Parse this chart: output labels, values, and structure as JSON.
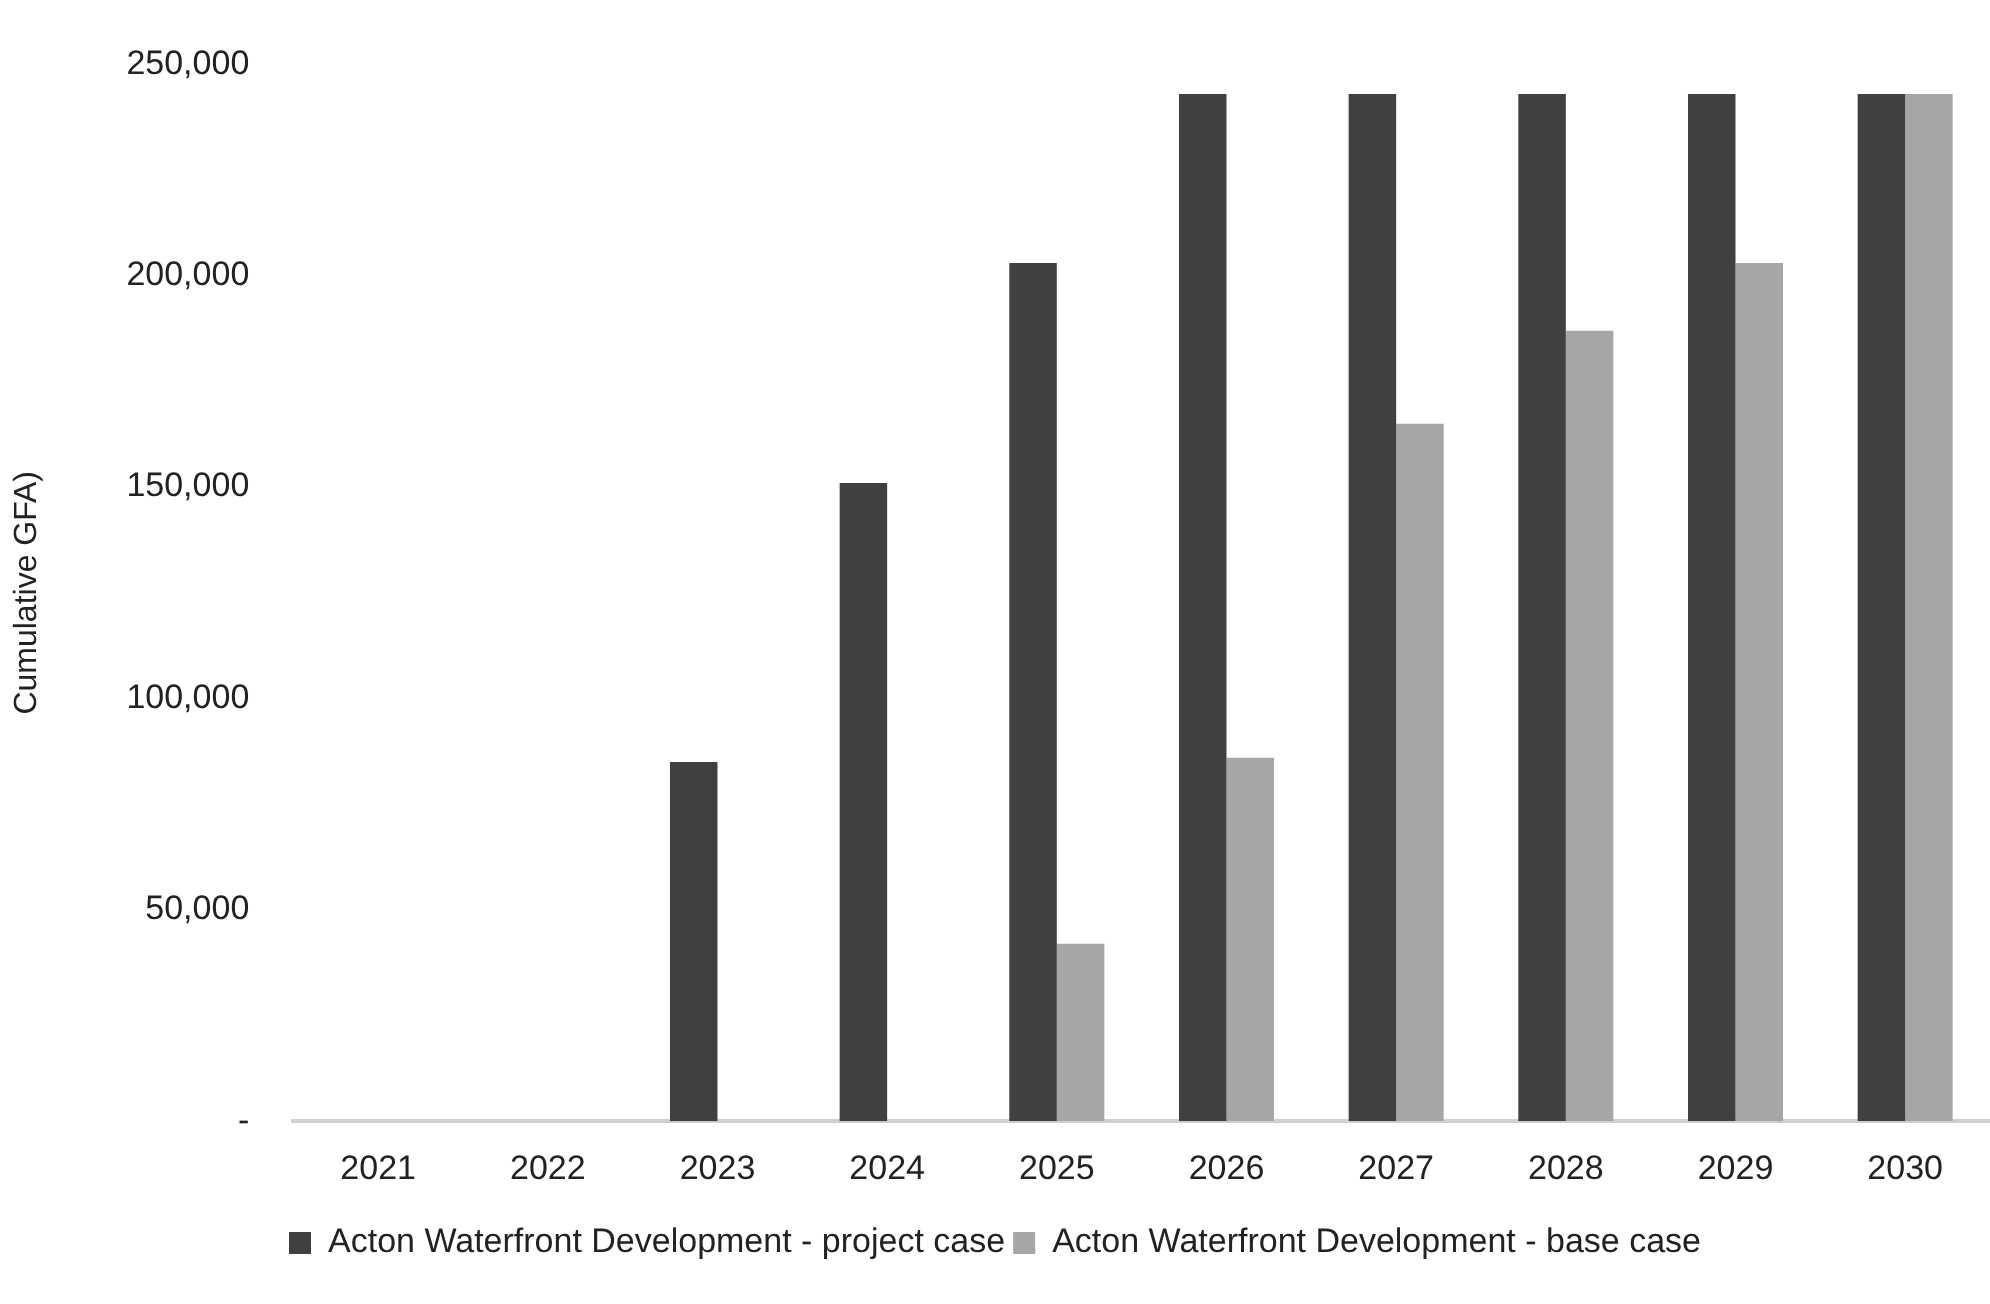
{
  "chart_data": {
    "type": "bar",
    "ylabel": "Cumulative GFA)",
    "categories": [
      "2021",
      "2022",
      "2023",
      "2024",
      "2025",
      "2026",
      "2027",
      "2028",
      "2029",
      "2030"
    ],
    "series": [
      {
        "name": "Acton Waterfront Development - project case",
        "color": "#404040",
        "values": [
          0,
          0,
          85000,
          151000,
          203000,
          243000,
          243000,
          243000,
          243000,
          243000
        ]
      },
      {
        "name": "Acton Waterfront Development - base case",
        "color": "#a6a6a6",
        "values": [
          0,
          0,
          0,
          0,
          42000,
          86000,
          165000,
          187000,
          203000,
          243000
        ]
      }
    ],
    "ylim": [
      0,
      250000
    ],
    "yticks": [
      {
        "value": 0,
        "label": "-"
      },
      {
        "value": 50000,
        "label": "50,000"
      },
      {
        "value": 100000,
        "label": "100,000"
      },
      {
        "value": 150000,
        "label": "150,000"
      },
      {
        "value": 200000,
        "label": "200,000"
      },
      {
        "value": 250000,
        "label": "250,000"
      }
    ],
    "grid": false,
    "legend": "bottom"
  }
}
